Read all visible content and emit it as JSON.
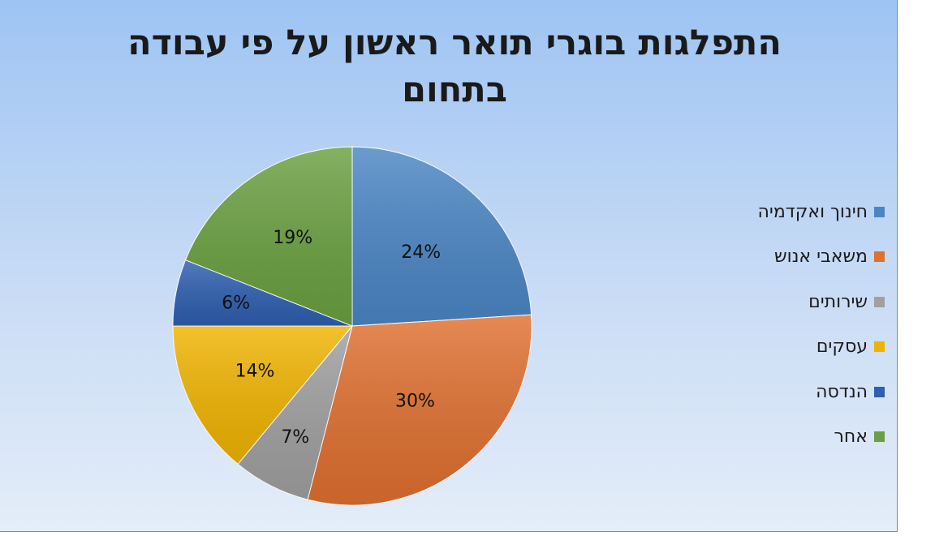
{
  "chart_data": {
    "type": "pie",
    "title": "התפלגות בוגרי תואר ראשון על פי עבודה בתחום",
    "categories": [
      "חינוך ואקדמיה",
      "משאבי אנוש",
      "שירותים",
      "עסקים",
      "הנדסה",
      "אחר"
    ],
    "values": [
      24,
      30,
      7,
      14,
      6,
      19
    ],
    "labels": [
      "24%",
      "30%",
      "7%",
      "14%",
      "6%",
      "19%"
    ],
    "colors": [
      "#4a86c5",
      "#e07030",
      "#a0a0a0",
      "#f0b400",
      "#2e5fb0",
      "#6aa040"
    ],
    "legend": "right",
    "start_angle": "top",
    "direction": "clockwise"
  }
}
